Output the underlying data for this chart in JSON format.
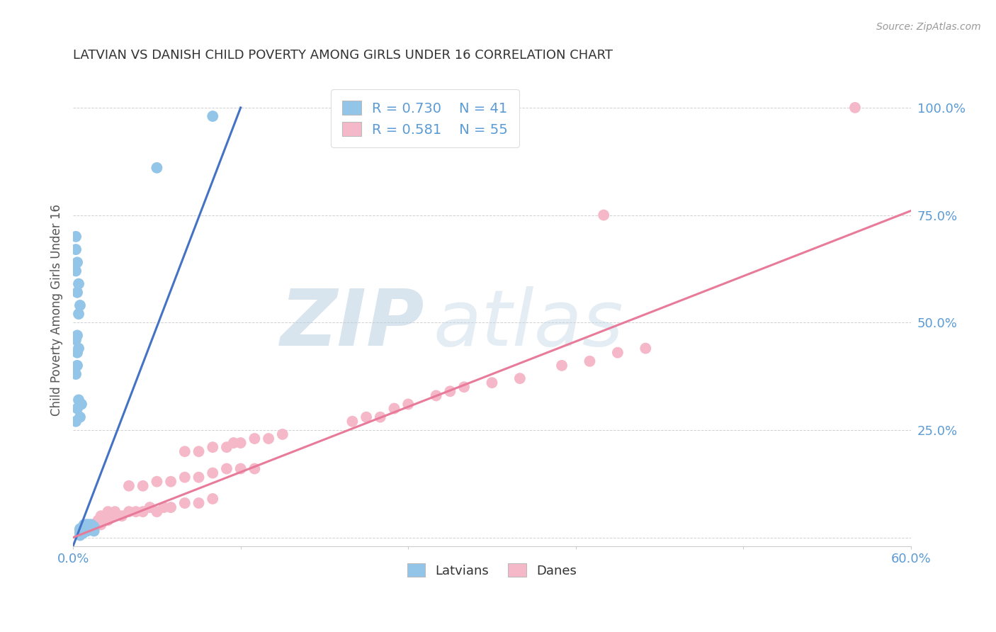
{
  "title": "LATVIAN VS DANISH CHILD POVERTY AMONG GIRLS UNDER 16 CORRELATION CHART",
  "source": "Source: ZipAtlas.com",
  "ylabel": "Child Poverty Among Girls Under 16",
  "xlim": [
    0.0,
    0.6
  ],
  "ylim": [
    -0.02,
    1.08
  ],
  "latvian_color": "#92c5e8",
  "dane_color": "#f5b8c8",
  "latvian_line_color": "#4472c4",
  "dane_line_color": "#e87a9a",
  "R_latvian": 0.73,
  "N_latvian": 41,
  "R_dane": 0.581,
  "N_dane": 55,
  "legend_latvians": "Latvians",
  "legend_danes": "Danes",
  "watermark_zip": "ZIP",
  "watermark_atlas": "atlas",
  "background_color": "#ffffff",
  "tick_color": "#5b9bd5",
  "latvian_scatter": [
    [
      0.005,
      0.005
    ],
    [
      0.005,
      0.01
    ],
    [
      0.005,
      0.015
    ],
    [
      0.005,
      0.02
    ],
    [
      0.007,
      0.01
    ],
    [
      0.007,
      0.015
    ],
    [
      0.007,
      0.025
    ],
    [
      0.008,
      0.02
    ],
    [
      0.008,
      0.025
    ],
    [
      0.008,
      0.03
    ],
    [
      0.01,
      0.015
    ],
    [
      0.01,
      0.02
    ],
    [
      0.01,
      0.03
    ],
    [
      0.012,
      0.02
    ],
    [
      0.012,
      0.025
    ],
    [
      0.012,
      0.03
    ],
    [
      0.013,
      0.025
    ],
    [
      0.013,
      0.03
    ],
    [
      0.015,
      0.015
    ],
    [
      0.015,
      0.025
    ],
    [
      0.002,
      0.27
    ],
    [
      0.003,
      0.3
    ],
    [
      0.004,
      0.32
    ],
    [
      0.005,
      0.28
    ],
    [
      0.006,
      0.31
    ],
    [
      0.002,
      0.38
    ],
    [
      0.003,
      0.4
    ],
    [
      0.003,
      0.43
    ],
    [
      0.004,
      0.44
    ],
    [
      0.002,
      0.46
    ],
    [
      0.003,
      0.47
    ],
    [
      0.004,
      0.52
    ],
    [
      0.005,
      0.54
    ],
    [
      0.003,
      0.57
    ],
    [
      0.004,
      0.59
    ],
    [
      0.002,
      0.62
    ],
    [
      0.003,
      0.64
    ],
    [
      0.002,
      0.67
    ],
    [
      0.002,
      0.7
    ],
    [
      0.06,
      0.86
    ],
    [
      0.1,
      0.98
    ]
  ],
  "dane_scatter": [
    [
      0.01,
      0.03
    ],
    [
      0.015,
      0.03
    ],
    [
      0.018,
      0.04
    ],
    [
      0.02,
      0.03
    ],
    [
      0.02,
      0.05
    ],
    [
      0.025,
      0.04
    ],
    [
      0.025,
      0.06
    ],
    [
      0.03,
      0.05
    ],
    [
      0.03,
      0.06
    ],
    [
      0.035,
      0.05
    ],
    [
      0.04,
      0.06
    ],
    [
      0.045,
      0.06
    ],
    [
      0.05,
      0.06
    ],
    [
      0.055,
      0.07
    ],
    [
      0.06,
      0.06
    ],
    [
      0.065,
      0.07
    ],
    [
      0.07,
      0.07
    ],
    [
      0.08,
      0.08
    ],
    [
      0.09,
      0.08
    ],
    [
      0.1,
      0.09
    ],
    [
      0.04,
      0.12
    ],
    [
      0.05,
      0.12
    ],
    [
      0.06,
      0.13
    ],
    [
      0.07,
      0.13
    ],
    [
      0.08,
      0.14
    ],
    [
      0.09,
      0.14
    ],
    [
      0.1,
      0.15
    ],
    [
      0.11,
      0.16
    ],
    [
      0.12,
      0.16
    ],
    [
      0.13,
      0.16
    ],
    [
      0.08,
      0.2
    ],
    [
      0.09,
      0.2
    ],
    [
      0.1,
      0.21
    ],
    [
      0.11,
      0.21
    ],
    [
      0.115,
      0.22
    ],
    [
      0.12,
      0.22
    ],
    [
      0.13,
      0.23
    ],
    [
      0.14,
      0.23
    ],
    [
      0.15,
      0.24
    ],
    [
      0.2,
      0.27
    ],
    [
      0.21,
      0.28
    ],
    [
      0.22,
      0.28
    ],
    [
      0.23,
      0.3
    ],
    [
      0.24,
      0.31
    ],
    [
      0.26,
      0.33
    ],
    [
      0.27,
      0.34
    ],
    [
      0.28,
      0.35
    ],
    [
      0.3,
      0.36
    ],
    [
      0.32,
      0.37
    ],
    [
      0.35,
      0.4
    ],
    [
      0.37,
      0.41
    ],
    [
      0.39,
      0.43
    ],
    [
      0.41,
      0.44
    ],
    [
      0.38,
      0.75
    ],
    [
      0.56,
      1.0
    ]
  ],
  "latvian_line": [
    [
      0.0,
      -0.02
    ],
    [
      0.12,
      1.0
    ]
  ],
  "dane_line": [
    [
      0.0,
      0.0
    ],
    [
      0.6,
      0.76
    ]
  ]
}
